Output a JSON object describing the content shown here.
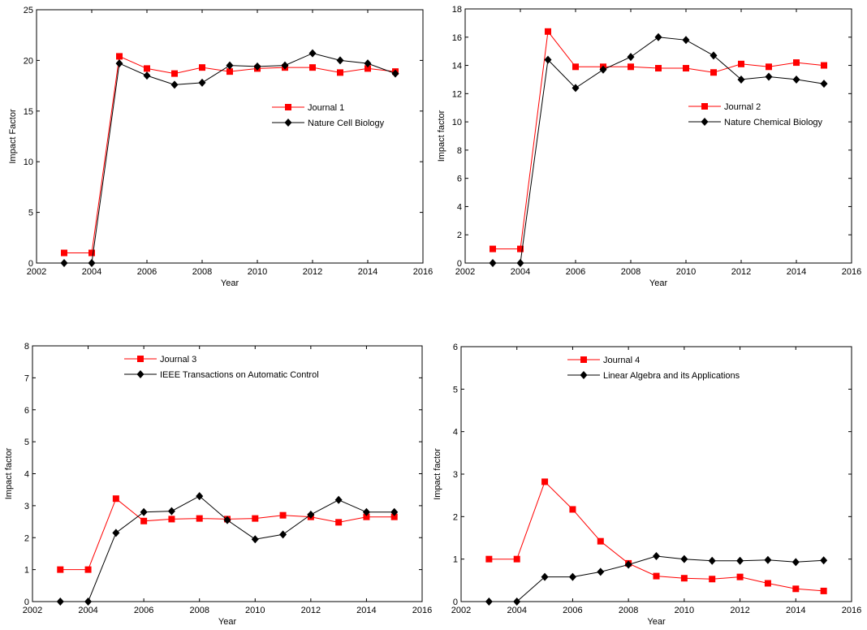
{
  "chart_data": [
    {
      "type": "line",
      "xlabel": "Year",
      "ylabel": "Impact Factor",
      "xlim": [
        2002,
        2016
      ],
      "ylim": [
        0,
        25
      ],
      "xticks": [
        2002,
        2004,
        2006,
        2008,
        2010,
        2012,
        2014,
        2016
      ],
      "yticks": [
        0,
        5,
        10,
        15,
        20,
        25
      ],
      "grid": false,
      "legend": "right",
      "x": [
        2003,
        2004,
        2005,
        2006,
        2007,
        2008,
        2009,
        2010,
        2011,
        2012,
        2013,
        2014,
        2015
      ],
      "series": [
        {
          "name": "Journal 1",
          "color": "#ff0000",
          "marker": "square",
          "values": [
            1.0,
            1.0,
            20.4,
            19.2,
            18.7,
            19.3,
            18.9,
            19.2,
            19.3,
            19.3,
            18.8,
            19.2,
            18.9
          ]
        },
        {
          "name": "Nature Cell Biology",
          "color": "#000000",
          "marker": "diamond",
          "values": [
            0,
            0,
            19.7,
            18.5,
            17.6,
            17.8,
            19.5,
            19.4,
            19.5,
            20.7,
            20.0,
            19.7,
            18.7
          ]
        }
      ]
    },
    {
      "type": "line",
      "xlabel": "Year",
      "ylabel": "Impact factor",
      "xlim": [
        2002,
        2016
      ],
      "ylim": [
        0,
        18
      ],
      "xticks": [
        2002,
        2004,
        2006,
        2008,
        2010,
        2012,
        2014,
        2016
      ],
      "yticks": [
        0,
        2,
        4,
        6,
        8,
        10,
        12,
        14,
        16,
        18
      ],
      "grid": false,
      "legend": "right",
      "x": [
        2003,
        2004,
        2005,
        2006,
        2007,
        2008,
        2009,
        2010,
        2011,
        2012,
        2013,
        2014,
        2015
      ],
      "series": [
        {
          "name": "Journal 2",
          "color": "#ff0000",
          "marker": "square",
          "values": [
            1.0,
            1.0,
            16.4,
            13.9,
            13.9,
            13.9,
            13.8,
            13.8,
            13.5,
            14.1,
            13.9,
            14.2,
            14.0
          ]
        },
        {
          "name": "Nature Chemical Biology",
          "color": "#000000",
          "marker": "diamond",
          "values": [
            0,
            0,
            14.4,
            12.4,
            13.7,
            14.6,
            16.0,
            15.8,
            14.7,
            13.0,
            13.2,
            13.0,
            12.7
          ]
        }
      ]
    },
    {
      "type": "line",
      "xlabel": "Year",
      "ylabel": "Impact factor",
      "xlim": [
        2002,
        2016
      ],
      "ylim": [
        0,
        8
      ],
      "xticks": [
        2002,
        2004,
        2006,
        2008,
        2010,
        2012,
        2014,
        2016
      ],
      "yticks": [
        0,
        1,
        2,
        3,
        4,
        5,
        6,
        7,
        8
      ],
      "grid": false,
      "legend": "top",
      "x": [
        2003,
        2004,
        2005,
        2006,
        2007,
        2008,
        2009,
        2010,
        2011,
        2012,
        2013,
        2014,
        2015
      ],
      "series": [
        {
          "name": "Journal 3",
          "color": "#ff0000",
          "marker": "square",
          "values": [
            1.0,
            1.0,
            3.22,
            2.52,
            2.58,
            2.6,
            2.58,
            2.6,
            2.7,
            2.65,
            2.48,
            2.65,
            2.65
          ]
        },
        {
          "name": "IEEE Transactions on Automatic Control",
          "color": "#000000",
          "marker": "diamond",
          "values": [
            0,
            0,
            2.15,
            2.8,
            2.83,
            3.3,
            2.55,
            1.95,
            2.1,
            2.72,
            3.18,
            2.8,
            2.8
          ]
        }
      ]
    },
    {
      "type": "line",
      "xlabel": "Year",
      "ylabel": "Impact factor",
      "xlim": [
        2002,
        2016
      ],
      "ylim": [
        0,
        6
      ],
      "xticks": [
        2002,
        2004,
        2006,
        2008,
        2010,
        2012,
        2014,
        2016
      ],
      "yticks": [
        0,
        1,
        2,
        3,
        4,
        5,
        6
      ],
      "grid": false,
      "legend": "top",
      "x": [
        2003,
        2004,
        2005,
        2006,
        2007,
        2008,
        2009,
        2010,
        2011,
        2012,
        2013,
        2014,
        2015
      ],
      "series": [
        {
          "name": "Journal 4",
          "color": "#ff0000",
          "marker": "square",
          "values": [
            1.0,
            1.0,
            2.82,
            2.17,
            1.42,
            0.9,
            0.6,
            0.55,
            0.53,
            0.58,
            0.43,
            0.3,
            0.25
          ]
        },
        {
          "name": "Linear Algebra and its Applications",
          "color": "#000000",
          "marker": "diamond",
          "values": [
            0,
            0,
            0.58,
            0.58,
            0.7,
            0.87,
            1.07,
            1.0,
            0.96,
            0.96,
            0.98,
            0.93,
            0.97
          ]
        }
      ]
    }
  ]
}
